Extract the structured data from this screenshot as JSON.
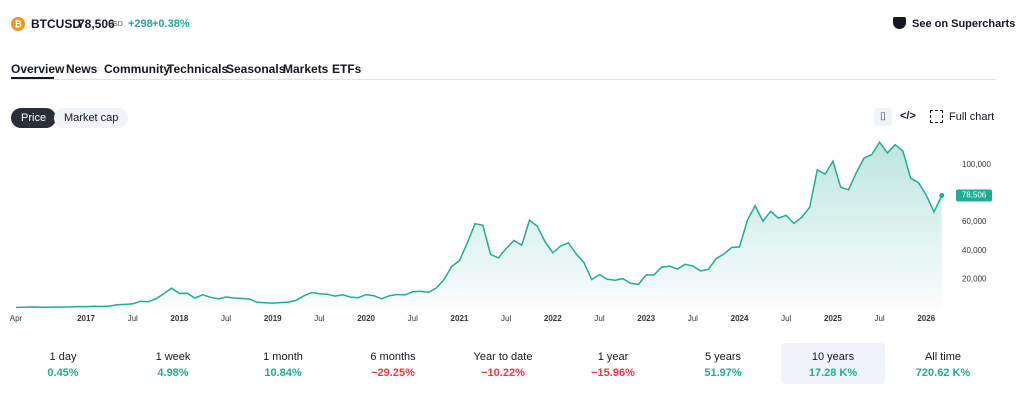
{
  "header": {
    "symbol": "BTCUSD",
    "price": "78,506",
    "currency": "USD",
    "change": "+298",
    "change_pct": "+0.38%",
    "link": "See on Supercharts"
  },
  "tabs": [
    "Overview",
    "News",
    "Community",
    "Technicals",
    "Seasonals",
    "Markets",
    "ETFs"
  ],
  "buttons": {
    "price": "Price",
    "market_cap": "Market cap",
    "full_chart": "Full chart"
  },
  "chart_data": {
    "type": "area",
    "color": "#22ab94",
    "categories": [
      "Apr",
      null,
      null,
      null,
      null,
      null,
      null,
      null,
      null,
      "2017",
      null,
      null,
      null,
      null,
      null,
      "Jul",
      null,
      null,
      null,
      null,
      null,
      "2018",
      null,
      null,
      null,
      null,
      null,
      "Jul",
      null,
      null,
      null,
      null,
      null,
      "2019",
      null,
      null,
      null,
      null,
      null,
      "Jul",
      null,
      null,
      null,
      null,
      null,
      "2020",
      null,
      null,
      null,
      null,
      null,
      "Jul",
      null,
      null,
      null,
      null,
      null,
      "2021",
      null,
      null,
      null,
      null,
      null,
      "Jul",
      null,
      null,
      null,
      null,
      null,
      "2022",
      null,
      null,
      null,
      null,
      null,
      "Jul",
      null,
      null,
      null,
      null,
      null,
      "2023",
      null,
      null,
      null,
      null,
      null,
      "Jul",
      null,
      null,
      null,
      null,
      null,
      "2024",
      null,
      null,
      null,
      null,
      null,
      "Jul",
      null,
      null,
      null,
      null,
      null,
      "2025",
      null,
      null,
      null,
      null,
      null,
      "Jul",
      null,
      null,
      null,
      null,
      null,
      "2026",
      null,
      null
    ],
    "values": [
      450,
      530,
      670,
      620,
      575,
      610,
      700,
      740,
      960,
      970,
      1190,
      1080,
      1350,
      2300,
      2480,
      2870,
      4700,
      4340,
      6470,
      10000,
      13800,
      10200,
      10300,
      6900,
      9200,
      7500,
      6400,
      7700,
      7000,
      6600,
      6300,
      4000,
      3700,
      3450,
      3800,
      4100,
      5300,
      8500,
      10800,
      10000,
      9600,
      8300,
      9200,
      7600,
      7200,
      9350,
      8600,
      6400,
      8600,
      9450,
      9140,
      11300,
      11650,
      10780,
      13800,
      19700,
      29000,
      33100,
      45200,
      58800,
      57700,
      37300,
      35000,
      41500,
      47100,
      43800,
      61300,
      57000,
      46300,
      38500,
      43200,
      45500,
      37700,
      31800,
      19900,
      23300,
      20000,
      19400,
      20500,
      17200,
      16500,
      23100,
      23100,
      28500,
      29200,
      27200,
      30500,
      29200,
      25900,
      27000,
      34500,
      37700,
      42300,
      42600,
      61100,
      71300,
      60600,
      67500,
      62700,
      64600,
      59000,
      63300,
      70200,
      96400,
      93400,
      102400,
      84300,
      82500,
      94200,
      104600,
      107100,
      115700,
      108200,
      114000,
      109500,
      90400,
      87500,
      78600,
      67000,
      78506
    ],
    "ylim": [
      0,
      120000
    ],
    "yticks": [
      {
        "value": 20000,
        "label": "20,000"
      },
      {
        "value": 40000,
        "label": "40,000"
      },
      {
        "value": 60000,
        "label": "60,000"
      },
      {
        "value": 100000,
        "label": "100,000"
      }
    ]
  },
  "periods": [
    {
      "name": "1 day",
      "value": "0.45%"
    },
    {
      "name": "1 week",
      "value": "4.98%"
    },
    {
      "name": "1 month",
      "value": "10.84%"
    },
    {
      "name": "6 months",
      "value": "−29.25%"
    },
    {
      "name": "Year to date",
      "value": "−10.22%"
    },
    {
      "name": "1 year",
      "value": "−15.96%"
    },
    {
      "name": "5 years",
      "value": "51.97%"
    },
    {
      "name": "10 years",
      "value": "17.28 K%"
    },
    {
      "name": "All time",
      "value": "720.62 K%"
    }
  ]
}
